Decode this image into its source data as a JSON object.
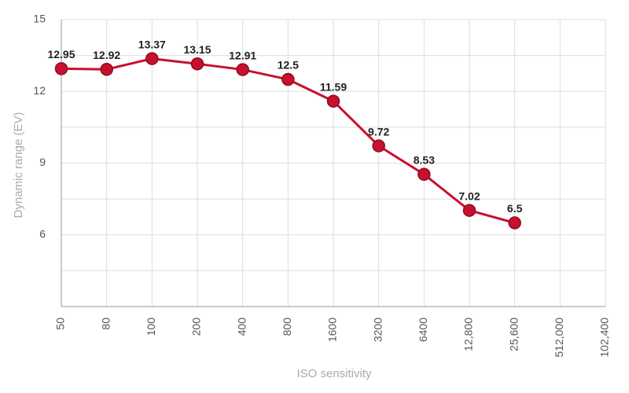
{
  "chart_data": {
    "type": "line",
    "x_label": "ISO sensitivity",
    "y_label": "Dynamic range (EV)",
    "categories": [
      "50",
      "80",
      "100",
      "200",
      "400",
      "800",
      "1600",
      "3200",
      "6400",
      "12,800",
      "25,600",
      "512,000",
      "102,400"
    ],
    "series": [
      {
        "name": "Dynamic range",
        "color": "#c8102e",
        "values": [
          12.95,
          12.92,
          13.37,
          13.15,
          12.91,
          12.5,
          11.59,
          9.72,
          8.53,
          7.02,
          6.5,
          null,
          null
        ]
      }
    ],
    "ylim": [
      3,
      15
    ],
    "yticks": [
      6,
      9,
      12,
      15
    ],
    "y_minor_ticks": [
      4.5,
      7.5,
      10.5,
      13.5
    ],
    "grid": true
  }
}
